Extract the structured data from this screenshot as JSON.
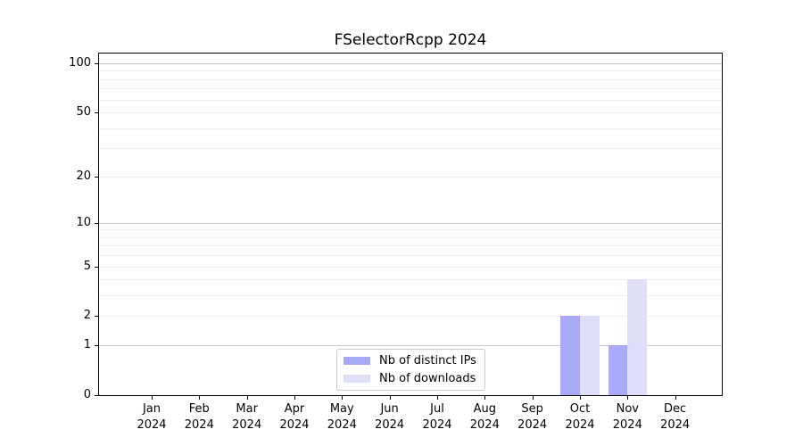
{
  "chart_data": {
    "type": "bar",
    "title": "FSelectorRcpp 2024",
    "year": "2024",
    "categories": [
      "Jan",
      "Feb",
      "Mar",
      "Apr",
      "May",
      "Jun",
      "Jul",
      "Aug",
      "Sep",
      "Oct",
      "Nov",
      "Dec"
    ],
    "series": [
      {
        "name": "Nb of distinct IPs",
        "color": "#a9aaf5",
        "values": [
          0,
          0,
          0,
          0,
          0,
          0,
          0,
          0,
          0,
          2,
          1,
          0
        ]
      },
      {
        "name": "Nb of downloads",
        "color": "#dedef9",
        "values": [
          0,
          0,
          0,
          0,
          0,
          0,
          0,
          0,
          0,
          2,
          4,
          0
        ]
      }
    ],
    "xlabel": "",
    "ylabel": "",
    "yscale": "log10(1+x)",
    "ylim": [
      0,
      117
    ],
    "yticks": [
      0,
      1,
      2,
      5,
      10,
      20,
      50,
      100
    ],
    "grid": {
      "major_values": [
        1,
        10,
        100
      ],
      "minor_values": [
        2,
        3,
        4,
        5,
        6,
        7,
        8,
        9,
        20,
        30,
        40,
        50,
        60,
        70,
        80,
        90
      ],
      "major_color": "#c9c9c9",
      "minor_color": "#ededed"
    },
    "legend": {
      "position": "lower center inside",
      "entries": [
        "Nb of distinct IPs",
        "Nb of downloads"
      ]
    },
    "axis_color": "#000000",
    "background_color": "#ffffff"
  }
}
